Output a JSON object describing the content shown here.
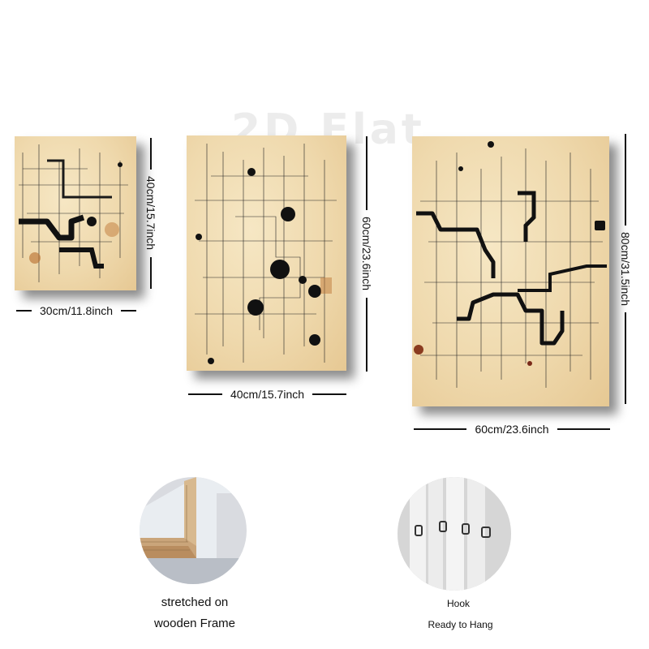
{
  "watermark": "2D Flat",
  "canvases": [
    {
      "width_label": "30cm/11.8inch",
      "height_label": "40cm/15.7inch"
    },
    {
      "width_label": "40cm/15.7inch",
      "height_label": "60cm/23.6inch"
    },
    {
      "width_label": "60cm/23.6inch",
      "height_label": "80cm/31.5inch"
    }
  ],
  "details": {
    "frame_caption_line1": "stretched on",
    "frame_caption_line2": "wooden Frame",
    "hook_caption": "Hook",
    "ready_caption": "Ready to Hang"
  }
}
